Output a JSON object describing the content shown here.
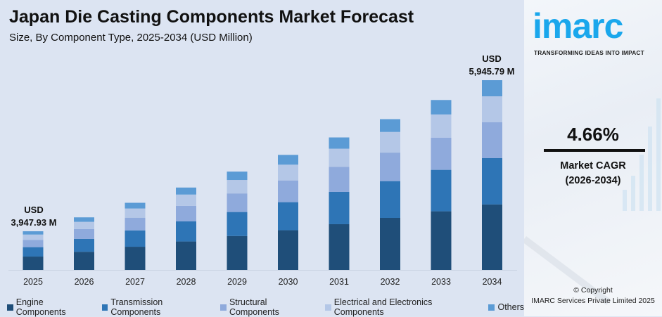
{
  "header": {
    "title": "Japan Die Casting Components Market Forecast",
    "subtitle": "Size, By Component Type, 2025-2034 (USD Million)"
  },
  "chart_data": {
    "type": "bar",
    "stacked": true,
    "title": "Japan Die Casting Components Market Forecast",
    "subtitle": "Size, By Component Type, 2025-2034 (USD Million)",
    "categories": [
      "2025",
      "2026",
      "2027",
      "2028",
      "2029",
      "2030",
      "2031",
      "2032",
      "2033",
      "2034"
    ],
    "totals": [
      3947.93,
      4131.9,
      4324.5,
      4526.0,
      4736.9,
      4957.7,
      5188.7,
      5430.5,
      5683.6,
      5945.79
    ],
    "series": [
      {
        "name": "Engine Components",
        "color": "#1f4e79",
        "values": [
          1362.0,
          1425.5,
          1491.9,
          1561.5,
          1634.2,
          1710.4,
          1790.1,
          1873.5,
          1960.8,
          2051.3
        ]
      },
      {
        "name": "Transmission Components",
        "color": "#2e75b6",
        "values": [
          963.3,
          1008.2,
          1055.2,
          1104.3,
          1155.8,
          1209.7,
          1266.0,
          1325.0,
          1386.8,
          1450.8
        ]
      },
      {
        "name": "Structural Components",
        "color": "#8faadc",
        "values": [
          746.2,
          780.9,
          817.3,
          855.4,
          895.3,
          937.0,
          980.7,
          1026.4,
          1074.2,
          1123.8
        ]
      },
      {
        "name": "Electrical and Electronics Components",
        "color": "#b4c7e7",
        "values": [
          540.9,
          566.1,
          592.5,
          620.1,
          649.0,
          679.2,
          710.9,
          744.0,
          778.7,
          814.6
        ]
      },
      {
        "name": "Others",
        "color": "#5b9bd5",
        "values": [
          335.6,
          351.2,
          367.6,
          384.7,
          402.6,
          421.4,
          441.0,
          461.6,
          483.1,
          505.4
        ]
      }
    ],
    "annotations": {
      "first": {
        "line1": "USD",
        "line2": "3,947.93 M"
      },
      "last": {
        "line1": "USD",
        "line2": "5,945.79 M"
      }
    },
    "legend_position": "bottom",
    "grid": false
  },
  "brand": {
    "logo": "imarc",
    "tagline": "TRANSFORMING IDEAS INTO IMPACT"
  },
  "cagr": {
    "value": "4.66%",
    "label": "Market CAGR",
    "period": "(2026-2034)"
  },
  "footer": {
    "copyright": "© Copyright",
    "company": "IMARC Services Private Limited 2025"
  }
}
